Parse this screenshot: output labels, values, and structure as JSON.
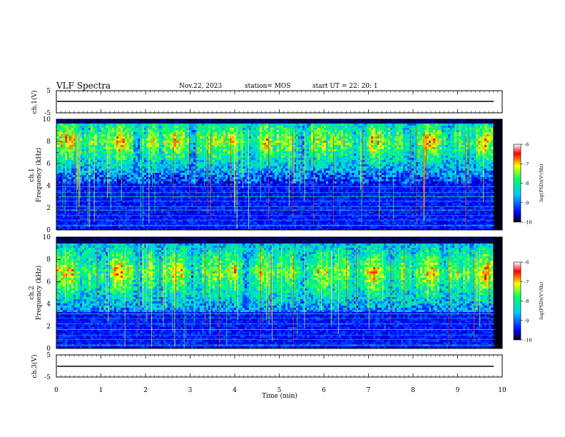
{
  "header": {
    "title": "VLF Spectra",
    "date": "Nov.22, 2023",
    "station": "station= MOS",
    "start": "start  UT  =   22: 20: 1"
  },
  "chart_data": {
    "type": "heatmap",
    "x": {
      "label": "Time  (min)",
      "ticks": [
        0,
        1,
        2,
        3,
        4,
        5,
        6,
        7,
        8,
        9,
        10
      ],
      "range": [
        0,
        10
      ]
    },
    "panels": [
      {
        "id": "ch1-voltage",
        "type": "line",
        "ylabel": "ch.1(V)",
        "yticks": [
          "5",
          "-5"
        ],
        "ylim": [
          -5,
          5
        ],
        "level": 0
      },
      {
        "id": "ch1-spectrogram",
        "type": "heatmap",
        "ylabel": "ch.1\nFrequency  (kHz)",
        "yticks": [
          0,
          2,
          4,
          6,
          8,
          10
        ],
        "ylim": [
          0,
          10
        ],
        "band_khz": [
          4.2,
          9.6
        ],
        "peak_khz": 8.0,
        "data_end_min": 9.83
      },
      {
        "id": "ch2-spectrogram",
        "type": "heatmap",
        "ylabel": "ch.2\nFrequency  (kHz)",
        "yticks": [
          0,
          2,
          4,
          6,
          8,
          10
        ],
        "ylim": [
          0,
          10
        ],
        "band_khz": [
          3.2,
          9.4
        ],
        "peak_khz": 6.8,
        "data_end_min": 9.83
      },
      {
        "id": "ch3-voltage",
        "type": "line",
        "ylabel": "ch.3(V)",
        "yticks": [
          "5",
          "-5"
        ],
        "ylim": [
          -5,
          5
        ],
        "level": -1.5
      }
    ],
    "colorbar": {
      "label": "log(PSD)(V²/Hz)",
      "ticks": [
        "-6",
        "-7",
        "-8",
        "-9",
        "-10"
      ],
      "range": [
        -10,
        -6
      ],
      "colors": [
        "#000000",
        "#0000ff",
        "#00c8ff",
        "#00ff64",
        "#ffff00",
        "#ff0000",
        "#ffffff"
      ]
    },
    "persistent_lines_khz": {
      "ch1": [
        0.4,
        0.9,
        1.3,
        1.8,
        2.1,
        2.6,
        3.0,
        3.4,
        3.9
      ],
      "ch2": [
        0.3,
        0.8,
        1.2,
        1.7,
        2.2,
        2.7,
        3.1,
        3.4
      ]
    }
  }
}
